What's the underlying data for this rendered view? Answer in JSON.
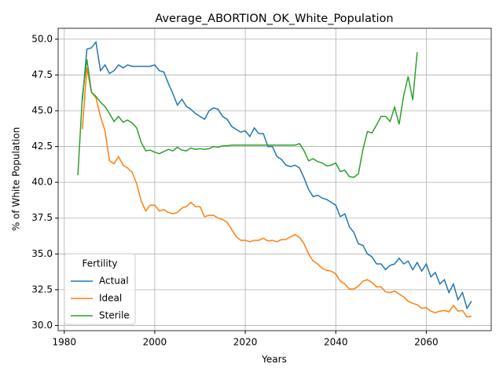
{
  "chart_data": {
    "type": "line",
    "title": "Average_ABORTION_OK_White_Population",
    "x_label": "Years",
    "y_label": "% of White Population",
    "x": [
      1983,
      1984,
      1985,
      1986,
      1987,
      1988,
      1989,
      1990,
      1991,
      1992,
      1993,
      1994,
      1995,
      1996,
      1997,
      1998,
      1999,
      2000,
      2001,
      2002,
      2003,
      2004,
      2005,
      2006,
      2007,
      2008,
      2009,
      2010,
      2011,
      2012,
      2013,
      2014,
      2015,
      2016,
      2017,
      2018,
      2019,
      2020,
      2021,
      2022,
      2023,
      2024,
      2025,
      2026,
      2027,
      2028,
      2029,
      2030,
      2031,
      2032,
      2033,
      2034,
      2035,
      2036,
      2037,
      2038,
      2039,
      2040,
      2041,
      2042,
      2043,
      2044,
      2045,
      2046,
      2047,
      2048,
      2049,
      2050,
      2051,
      2052,
      2053,
      2054,
      2055,
      2056,
      2057,
      2058,
      2059,
      2060,
      2061,
      2062,
      2063,
      2064,
      2065,
      2066,
      2067,
      2068,
      2069,
      2070
    ],
    "series": [
      {
        "name": "Actual",
        "color": "#1f77b4",
        "values": [
          null,
          45.7,
          49.3,
          49.4,
          49.8,
          47.8,
          48.2,
          47.6,
          47.8,
          48.2,
          48.0,
          48.2,
          48.1,
          48.1,
          48.1,
          48.1,
          48.1,
          48.2,
          47.8,
          47.7,
          46.9,
          46.2,
          45.4,
          45.8,
          45.3,
          45.1,
          44.8,
          44.6,
          44.4,
          45.0,
          45.2,
          45.1,
          44.6,
          44.4,
          43.9,
          43.7,
          43.5,
          43.6,
          43.2,
          43.8,
          43.4,
          43.4,
          42.5,
          42.5,
          41.8,
          41.6,
          41.2,
          41.1,
          41.2,
          41.0,
          40.3,
          39.5,
          39.0,
          39.1,
          38.9,
          38.8,
          38.6,
          38.4,
          37.6,
          37.8,
          36.9,
          36.5,
          35.7,
          35.6,
          35.0,
          34.8,
          34.3,
          34.3,
          33.9,
          34.2,
          34.3,
          34.7,
          34.3,
          34.5,
          33.9,
          34.4,
          33.8,
          34.3,
          33.4,
          33.7,
          32.9,
          33.2,
          32.3,
          32.9,
          31.8,
          32.3,
          31.2,
          31.7
        ]
      },
      {
        "name": "Ideal",
        "color": "#ff7f0e",
        "values": [
          null,
          43.7,
          48.0,
          46.3,
          45.9,
          44.6,
          43.6,
          41.5,
          41.3,
          41.8,
          41.2,
          41.0,
          40.7,
          39.9,
          38.7,
          38.0,
          38.4,
          38.4,
          38.0,
          38.1,
          37.9,
          37.8,
          37.9,
          38.2,
          38.3,
          38.6,
          38.3,
          38.3,
          37.6,
          37.7,
          37.7,
          37.5,
          37.4,
          37.2,
          36.7,
          36.2,
          35.95,
          35.95,
          35.85,
          35.95,
          35.95,
          36.1,
          35.9,
          35.95,
          35.85,
          36.0,
          36.0,
          36.2,
          36.35,
          36.15,
          35.7,
          35.0,
          34.5,
          34.3,
          34.0,
          33.85,
          33.8,
          33.6,
          33.1,
          32.9,
          32.55,
          32.55,
          32.75,
          33.1,
          33.2,
          33.0,
          32.7,
          32.7,
          32.35,
          32.3,
          32.4,
          32.2,
          32.0,
          31.7,
          31.55,
          31.45,
          31.2,
          31.25,
          31.0,
          30.9,
          31.0,
          31.05,
          30.95,
          31.4,
          31.0,
          31.05,
          30.6,
          30.65
        ]
      },
      {
        "name": "Sterile",
        "color": "#2ca02c",
        "values": [
          40.5,
          46.0,
          48.6,
          46.3,
          46.0,
          45.6,
          45.3,
          44.8,
          44.25,
          44.6,
          44.2,
          44.35,
          44.15,
          43.8,
          42.8,
          42.2,
          42.25,
          42.1,
          42.0,
          42.15,
          42.3,
          42.2,
          42.45,
          42.25,
          42.2,
          42.4,
          42.3,
          42.35,
          42.3,
          42.35,
          42.5,
          42.45,
          42.55,
          42.55,
          42.6,
          42.6,
          42.6,
          42.6,
          42.6,
          42.6,
          42.6,
          42.6,
          42.6,
          42.6,
          42.6,
          42.6,
          42.6,
          42.6,
          42.6,
          42.7,
          42.2,
          41.5,
          41.65,
          41.45,
          41.35,
          41.15,
          41.2,
          41.35,
          40.75,
          40.85,
          40.4,
          40.35,
          40.6,
          42.3,
          43.55,
          43.45,
          44.0,
          44.6,
          44.6,
          44.25,
          45.25,
          44.05,
          46.05,
          47.4,
          45.75,
          49.1,
          null,
          null,
          null,
          null,
          null,
          null,
          null,
          null,
          null,
          null,
          null,
          null
        ]
      }
    ],
    "xlim": [
      1978.65,
      2074.35
    ],
    "xticks": [
      1980,
      2000,
      2020,
      2040,
      2060
    ],
    "ylim": [
      29.64,
      50.76
    ],
    "yticks": [
      {
        "value": 30,
        "label": "30.0"
      },
      32.5,
      {
        "value": 35,
        "label": "35.0"
      },
      37.5,
      {
        "value": 40,
        "label": "40.0"
      },
      42.5,
      {
        "value": 45,
        "label": "45.0"
      },
      47.5,
      {
        "value": 50,
        "label": "50.0"
      }
    ],
    "grid": true,
    "legend_title": "Fertility",
    "legend_position": "lower left"
  }
}
